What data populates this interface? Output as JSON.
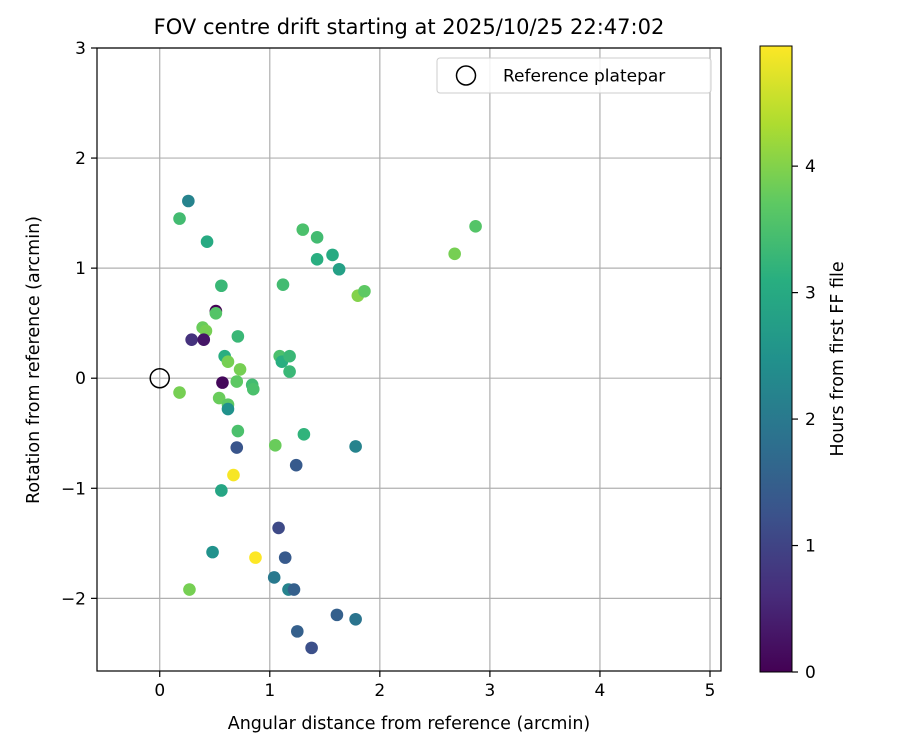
{
  "chart_data": {
    "type": "scatter",
    "title": "FOV centre drift starting at 2025/10/25 22:47:02",
    "xlabel": "Angular distance from reference (arcmin)",
    "ylabel": "Rotation from reference (arcmin)",
    "xlim": [
      -0.57,
      5.1
    ],
    "ylim": [
      -2.66,
      3.0
    ],
    "xticks": [
      0,
      1,
      2,
      3,
      4,
      5
    ],
    "yticks": [
      -2,
      -1,
      0,
      1,
      2,
      3
    ],
    "xtick_labels": [
      "0",
      "1",
      "2",
      "3",
      "4",
      "5"
    ],
    "ytick_labels": [
      "−2",
      "−1",
      "0",
      "1",
      "2",
      "3"
    ],
    "grid": true,
    "legend": {
      "position": "top-right",
      "label": "Reference platepar"
    },
    "reference_point": {
      "x": 0,
      "y": 0
    },
    "colorbar": {
      "label": "Hours from first FF file",
      "colormap": "viridis",
      "range": [
        0,
        4.95
      ],
      "ticks": [
        0,
        1,
        2,
        3,
        4
      ],
      "tick_labels": [
        "0",
        "1",
        "2",
        "3",
        "4"
      ]
    },
    "points": [
      {
        "x": 0.26,
        "y": 1.61,
        "c": 2.2
      },
      {
        "x": 0.18,
        "y": 1.45,
        "c": 3.4
      },
      {
        "x": 0.43,
        "y": 1.24,
        "c": 3.0
      },
      {
        "x": 0.56,
        "y": 0.84,
        "c": 3.3
      },
      {
        "x": 0.51,
        "y": 0.61,
        "c": 0.0
      },
      {
        "x": 0.51,
        "y": 0.59,
        "c": 3.6
      },
      {
        "x": 0.39,
        "y": 0.46,
        "c": 3.8
      },
      {
        "x": 0.42,
        "y": 0.43,
        "c": 3.9
      },
      {
        "x": 0.29,
        "y": 0.35,
        "c": 0.7
      },
      {
        "x": 0.4,
        "y": 0.35,
        "c": 0.3
      },
      {
        "x": 0.71,
        "y": 0.38,
        "c": 3.3
      },
      {
        "x": 0.59,
        "y": 0.2,
        "c": 3.1
      },
      {
        "x": 0.62,
        "y": 0.15,
        "c": 3.9
      },
      {
        "x": 0.73,
        "y": 0.08,
        "c": 3.9
      },
      {
        "x": 0.57,
        "y": -0.04,
        "c": 0.1
      },
      {
        "x": 0.7,
        "y": -0.03,
        "c": 3.7
      },
      {
        "x": 0.84,
        "y": -0.06,
        "c": 3.4
      },
      {
        "x": 0.85,
        "y": -0.1,
        "c": 3.5
      },
      {
        "x": 0.18,
        "y": -0.13,
        "c": 3.9
      },
      {
        "x": 0.54,
        "y": -0.18,
        "c": 3.8
      },
      {
        "x": 0.62,
        "y": -0.24,
        "c": 3.7
      },
      {
        "x": 0.62,
        "y": -0.28,
        "c": 2.5
      },
      {
        "x": 0.71,
        "y": -0.48,
        "c": 3.5
      },
      {
        "x": 0.7,
        "y": -0.63,
        "c": 1.3
      },
      {
        "x": 0.67,
        "y": -0.88,
        "c": 4.9
      },
      {
        "x": 0.56,
        "y": -1.02,
        "c": 2.9
      },
      {
        "x": 0.48,
        "y": -1.58,
        "c": 2.5
      },
      {
        "x": 0.27,
        "y": -1.92,
        "c": 3.9
      },
      {
        "x": 0.87,
        "y": -1.63,
        "c": 4.95
      },
      {
        "x": 1.12,
        "y": 0.85,
        "c": 3.4
      },
      {
        "x": 1.3,
        "y": 1.35,
        "c": 3.5
      },
      {
        "x": 1.43,
        "y": 1.28,
        "c": 3.4
      },
      {
        "x": 1.43,
        "y": 1.08,
        "c": 3.1
      },
      {
        "x": 1.57,
        "y": 1.12,
        "c": 3.0
      },
      {
        "x": 1.63,
        "y": 0.99,
        "c": 2.8
      },
      {
        "x": 1.8,
        "y": 0.75,
        "c": 4.0
      },
      {
        "x": 1.86,
        "y": 0.79,
        "c": 3.7
      },
      {
        "x": 2.68,
        "y": 1.13,
        "c": 3.9
      },
      {
        "x": 2.87,
        "y": 1.38,
        "c": 3.6
      },
      {
        "x": 1.09,
        "y": 0.2,
        "c": 3.5
      },
      {
        "x": 1.11,
        "y": 0.15,
        "c": 3.1
      },
      {
        "x": 1.18,
        "y": 0.2,
        "c": 3.3
      },
      {
        "x": 1.18,
        "y": 0.06,
        "c": 3.3
      },
      {
        "x": 1.05,
        "y": -0.61,
        "c": 3.8
      },
      {
        "x": 1.31,
        "y": -0.51,
        "c": 3.2
      },
      {
        "x": 1.24,
        "y": -0.79,
        "c": 1.4
      },
      {
        "x": 1.78,
        "y": -0.62,
        "c": 2.2
      },
      {
        "x": 1.08,
        "y": -1.36,
        "c": 1.1
      },
      {
        "x": 1.14,
        "y": -1.63,
        "c": 1.4
      },
      {
        "x": 1.04,
        "y": -1.81,
        "c": 2.0
      },
      {
        "x": 1.17,
        "y": -1.92,
        "c": 2.2
      },
      {
        "x": 1.22,
        "y": -1.92,
        "c": 1.5
      },
      {
        "x": 1.25,
        "y": -2.3,
        "c": 1.5
      },
      {
        "x": 1.38,
        "y": -2.45,
        "c": 1.2
      },
      {
        "x": 1.61,
        "y": -2.15,
        "c": 1.5
      },
      {
        "x": 1.78,
        "y": -2.19,
        "c": 1.9
      }
    ]
  }
}
